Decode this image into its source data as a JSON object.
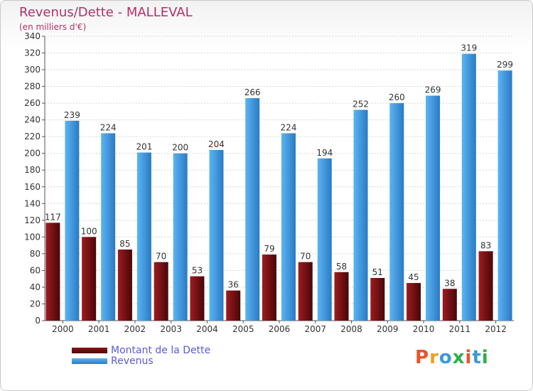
{
  "title": "Revenus/Dette - MALLEVAL",
  "subtitle": "(en milliers d'€)",
  "logo_text": "Proxiti",
  "colors": {
    "debt": "#7a0f12",
    "debt_dark": "#4a0608",
    "revenue": "#4da6ec",
    "revenue_dark": "#2a7ac4",
    "title": "#b0306a",
    "legend_text": "#5a5ad6",
    "logo": [
      "#e8552b",
      "#f0a020",
      "#3a9ad9",
      "#2bb04a",
      "#e8552b",
      "#3a9ad9",
      "#2bb04a"
    ]
  },
  "chart_data": {
    "type": "bar",
    "categories": [
      "2000",
      "2001",
      "2002",
      "2003",
      "2004",
      "2005",
      "2006",
      "2007",
      "2008",
      "2009",
      "2010",
      "2011",
      "2012"
    ],
    "series": [
      {
        "name": "Montant de la Dette",
        "values": [
          117,
          100,
          85,
          70,
          53,
          36,
          79,
          70,
          58,
          51,
          45,
          38,
          83
        ]
      },
      {
        "name": "Revenus",
        "values": [
          239,
          224,
          201,
          200,
          204,
          266,
          224,
          194,
          252,
          260,
          269,
          319,
          299
        ]
      }
    ],
    "ylim": [
      0,
      340
    ],
    "yticks": [
      0,
      20,
      40,
      60,
      80,
      100,
      120,
      140,
      160,
      180,
      200,
      220,
      240,
      260,
      280,
      300,
      320,
      340
    ],
    "grid": true,
    "legend": "bottom-left"
  }
}
